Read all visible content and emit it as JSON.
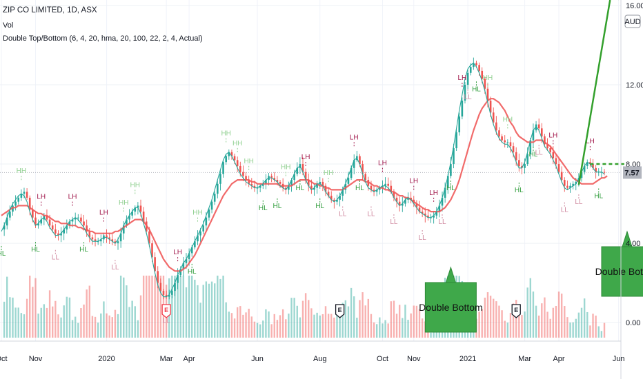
{
  "legend": {
    "symbol": "ZIP CO LIMITED, 1D, ASX",
    "volume": "Vol",
    "indicator": "Double Top/Bottom (6, 4, 20, hma, 20, 100, 22, 2, 4, Actual)"
  },
  "axis": {
    "currency": "AUD",
    "last_price": "7.57",
    "price_ticks": [
      "16.00",
      "12.00",
      "8.00",
      "4.00",
      "0.00"
    ]
  },
  "events": {
    "earnings": [
      "E",
      "E",
      "E"
    ]
  },
  "callouts": [
    {
      "label": "Double Bottom"
    },
    {
      "label": "Double Bottom"
    }
  ],
  "colors": {
    "up": "#26a69a",
    "down": "#ef5350",
    "ma_fast": "#26a69a",
    "ma_slow": "#f05a5a",
    "pivot_green": "#2e9c3a",
    "pivot_light": "#90d090",
    "pivot_red": "#a0164a",
    "pivot_pink": "#d08aa0",
    "callout_fill": "#3fa84a"
  },
  "chart_data": {
    "type": "line",
    "title": "ZIP CO LIMITED, 1D, ASX",
    "ylabel": "AUD",
    "ylim": [
      -2.5,
      16
    ],
    "x_tick_labels": [
      "Oct",
      "Nov",
      "2020",
      "Mar",
      "Apr",
      "Jun",
      "Aug",
      "Oct",
      "Nov",
      "2021",
      "Mar",
      "Apr",
      "Jun"
    ],
    "x_tick_index": [
      0,
      12,
      37,
      58,
      66,
      90,
      112,
      134,
      145,
      164,
      184,
      196,
      217
    ],
    "series": [
      {
        "name": "Close",
        "values": [
          4.7,
          4.9,
          5.3,
          5.6,
          5.9,
          6.1,
          6.3,
          6.5,
          6.6,
          6.3,
          5.7,
          5.3,
          4.9,
          5.0,
          5.2,
          5.4,
          5.2,
          4.9,
          4.7,
          4.5,
          4.4,
          4.5,
          4.7,
          4.9,
          5.1,
          5.2,
          5.3,
          5.3,
          5.1,
          4.9,
          4.6,
          4.3,
          4.2,
          4.1,
          4.1,
          4.2,
          4.4,
          4.3,
          4.2,
          4.1,
          4.0,
          4.1,
          4.5,
          4.9,
          5.2,
          5.4,
          5.6,
          5.8,
          5.9,
          5.6,
          5.1,
          4.6,
          4.0,
          3.3,
          2.6,
          2.0,
          1.6,
          1.4,
          1.3,
          1.4,
          1.6,
          2.0,
          2.4,
          2.7,
          3.0,
          3.2,
          3.5,
          3.8,
          4.1,
          4.4,
          4.6,
          4.9,
          5.3,
          5.7,
          6.1,
          6.5,
          7.0,
          7.5,
          8.1,
          8.4,
          8.6,
          8.4,
          8.2,
          7.9,
          7.6,
          7.4,
          7.2,
          7.0,
          6.9,
          6.8,
          6.8,
          6.9,
          7.0,
          7.2,
          7.4,
          7.3,
          7.2,
          7.1,
          7.0,
          6.8,
          6.7,
          6.9,
          7.2,
          7.5,
          7.8,
          8.0,
          7.6,
          7.2,
          6.9,
          6.7,
          6.8,
          7.0,
          7.1,
          6.9,
          6.6,
          6.4,
          6.2,
          6.1,
          6.2,
          6.4,
          6.7,
          7.0,
          7.3,
          7.8,
          8.2,
          8.4,
          8.0,
          7.5,
          7.2,
          6.9,
          6.7,
          6.6,
          6.7,
          6.8,
          6.9,
          7.0,
          6.9,
          6.6,
          6.3,
          6.1,
          5.9,
          6.0,
          6.2,
          6.3,
          6.2,
          6.0,
          5.8,
          5.6,
          5.5,
          5.4,
          5.3,
          5.3,
          5.4,
          5.6,
          5.9,
          6.3,
          6.8,
          7.4,
          8.0,
          8.8,
          9.6,
          10.4,
          11.2,
          12.0,
          12.6,
          12.9,
          13.1,
          13.0,
          12.7,
          12.3,
          11.8,
          11.2,
          10.6,
          10.1,
          9.7,
          9.4,
          9.2,
          9.1,
          9.1,
          8.9,
          8.6,
          8.2,
          7.9,
          7.8,
          8.0,
          8.5,
          9.2,
          9.7,
          10.0,
          9.8,
          9.4,
          9.0,
          8.8,
          8.6,
          8.3,
          8.0,
          7.6,
          7.2,
          6.9,
          6.8,
          6.9,
          7.0,
          7.1,
          7.3,
          7.6,
          7.9,
          8.1,
          8.0,
          7.8,
          7.6,
          7.6,
          7.6,
          7.57
        ]
      },
      {
        "name": "HMA (fast)",
        "values": [
          4.6,
          4.9,
          5.3,
          5.7,
          6.0,
          6.2,
          6.4,
          6.5,
          6.4,
          6.1,
          5.6,
          5.2,
          4.9,
          5.0,
          5.2,
          5.3,
          5.1,
          4.8,
          4.6,
          4.4,
          4.4,
          4.5,
          4.7,
          4.9,
          5.1,
          5.2,
          5.3,
          5.2,
          5.0,
          4.8,
          4.5,
          4.3,
          4.1,
          4.1,
          4.1,
          4.2,
          4.3,
          4.3,
          4.2,
          4.1,
          4.0,
          4.2,
          4.5,
          4.9,
          5.2,
          5.4,
          5.6,
          5.8,
          5.8,
          5.5,
          5.0,
          4.5,
          3.9,
          3.2,
          2.5,
          1.9,
          1.5,
          1.3,
          1.3,
          1.4,
          1.7,
          2.0,
          2.4,
          2.7,
          3.0,
          3.2,
          3.5,
          3.8,
          4.1,
          4.4,
          4.7,
          5.0,
          5.4,
          5.8,
          6.2,
          6.7,
          7.2,
          7.7,
          8.2,
          8.5,
          8.6,
          8.4,
          8.1,
          7.8,
          7.5,
          7.3,
          7.1,
          7.0,
          6.9,
          6.8,
          6.8,
          6.9,
          7.0,
          7.2,
          7.3,
          7.3,
          7.2,
          7.1,
          6.9,
          6.8,
          6.7,
          6.9,
          7.2,
          7.5,
          7.8,
          7.9,
          7.6,
          7.2,
          6.9,
          6.7,
          6.8,
          7.0,
          7.0,
          6.9,
          6.6,
          6.4,
          6.2,
          6.1,
          6.2,
          6.4,
          6.7,
          7.0,
          7.4,
          7.8,
          8.2,
          8.3,
          8.0,
          7.5,
          7.1,
          6.8,
          6.7,
          6.6,
          6.7,
          6.8,
          6.9,
          6.9,
          6.8,
          6.6,
          6.3,
          6.1,
          5.9,
          6.0,
          6.2,
          6.3,
          6.2,
          6.0,
          5.8,
          5.6,
          5.5,
          5.4,
          5.3,
          5.3,
          5.4,
          5.6,
          5.9,
          6.3,
          6.8,
          7.4,
          8.1,
          8.9,
          9.8,
          10.7,
          11.5,
          12.3,
          12.8,
          13.0,
          13.1,
          12.9,
          12.6,
          12.2,
          11.7,
          11.1,
          10.5,
          10.0,
          9.6,
          9.3,
          9.1,
          9.0,
          9.0,
          8.8,
          8.5,
          8.1,
          7.8,
          7.8,
          8.1,
          8.6,
          9.2,
          9.7,
          9.9,
          9.7,
          9.3,
          8.9,
          8.7,
          8.5,
          8.2,
          7.9,
          7.5,
          7.1,
          6.8,
          6.7,
          6.8,
          6.9,
          7.0,
          7.3,
          7.6,
          7.9,
          8.1,
          8.0,
          7.8,
          7.6,
          7.6,
          7.6,
          7.5
        ]
      },
      {
        "name": "HMA (slow)",
        "values": [
          5.4,
          5.5,
          5.6,
          5.7,
          5.8,
          5.8,
          5.9,
          5.9,
          5.9,
          5.9,
          5.8,
          5.7,
          5.6,
          5.5,
          5.5,
          5.4,
          5.4,
          5.3,
          5.2,
          5.1,
          5.1,
          5.0,
          5.0,
          5.0,
          4.9,
          4.9,
          4.9,
          4.8,
          4.8,
          4.7,
          4.7,
          4.6,
          4.6,
          4.5,
          4.5,
          4.5,
          4.5,
          4.5,
          4.5,
          4.5,
          4.6,
          4.6,
          4.7,
          4.8,
          4.9,
          5.0,
          5.1,
          5.2,
          5.2,
          5.2,
          5.1,
          4.9,
          4.7,
          4.4,
          4.1,
          3.8,
          3.5,
          3.2,
          3.0,
          2.8,
          2.7,
          2.6,
          2.6,
          2.6,
          2.7,
          2.8,
          3.0,
          3.2,
          3.4,
          3.7,
          4.0,
          4.3,
          4.6,
          4.9,
          5.2,
          5.5,
          5.8,
          6.1,
          6.4,
          6.6,
          6.8,
          7.0,
          7.1,
          7.2,
          7.2,
          7.2,
          7.2,
          7.2,
          7.1,
          7.1,
          7.0,
          7.0,
          7.0,
          7.0,
          7.0,
          7.0,
          7.0,
          7.0,
          6.9,
          6.9,
          6.9,
          6.9,
          6.9,
          7.0,
          7.1,
          7.2,
          7.2,
          7.2,
          7.2,
          7.1,
          7.0,
          7.0,
          6.9,
          6.9,
          6.8,
          6.8,
          6.7,
          6.7,
          6.7,
          6.7,
          6.7,
          6.8,
          6.9,
          7.0,
          7.1,
          7.2,
          7.2,
          7.2,
          7.1,
          7.1,
          7.0,
          6.9,
          6.9,
          6.8,
          6.8,
          6.7,
          6.7,
          6.6,
          6.6,
          6.5,
          6.4,
          6.4,
          6.3,
          6.3,
          6.2,
          6.1,
          6.0,
          5.9,
          5.8,
          5.7,
          5.7,
          5.6,
          5.6,
          5.6,
          5.6,
          5.7,
          5.8,
          6.0,
          6.2,
          6.5,
          6.8,
          7.2,
          7.7,
          8.2,
          8.7,
          9.2,
          9.7,
          10.1,
          10.5,
          10.8,
          11.0,
          11.2,
          11.3,
          11.3,
          11.2,
          11.1,
          10.9,
          10.7,
          10.4,
          10.1,
          9.9,
          9.6,
          9.4,
          9.3,
          9.2,
          9.1,
          9.1,
          9.1,
          9.2,
          9.2,
          9.2,
          9.1,
          9.0,
          8.9,
          8.7,
          8.5,
          8.3,
          8.1,
          7.9,
          7.7,
          7.5,
          7.3,
          7.2,
          7.1,
          7.0,
          7.0,
          7.0,
          7.0,
          7.0,
          7.1,
          7.2,
          7.3,
          7.3,
          7.4
        ]
      }
    ],
    "pivots": [
      {
        "i": 0,
        "label": "HL"
      },
      {
        "i": 7,
        "label": "HH"
      },
      {
        "i": 12,
        "label": "HL"
      },
      {
        "i": 14,
        "label": "LH"
      },
      {
        "i": 19,
        "label": "LL"
      },
      {
        "i": 25,
        "label": "LH"
      },
      {
        "i": 29,
        "label": "HL"
      },
      {
        "i": 36,
        "label": "LH"
      },
      {
        "i": 40,
        "label": "LL"
      },
      {
        "i": 43,
        "label": "HH"
      },
      {
        "i": 47,
        "label": "HH"
      },
      {
        "i": 58,
        "label": "LL"
      },
      {
        "i": 62,
        "label": "LH"
      },
      {
        "i": 67,
        "label": "HL"
      },
      {
        "i": 69,
        "label": "HH"
      },
      {
        "i": 79,
        "label": "HH"
      },
      {
        "i": 83,
        "label": "HH"
      },
      {
        "i": 87,
        "label": "HH"
      },
      {
        "i": 92,
        "label": "HL"
      },
      {
        "i": 97,
        "label": "HL"
      },
      {
        "i": 100,
        "label": "HH"
      },
      {
        "i": 105,
        "label": "HL"
      },
      {
        "i": 107,
        "label": "LH"
      },
      {
        "i": 112,
        "label": "HL"
      },
      {
        "i": 115,
        "label": "HH"
      },
      {
        "i": 120,
        "label": "LL"
      },
      {
        "i": 124,
        "label": "LH"
      },
      {
        "i": 126,
        "label": "HL"
      },
      {
        "i": 130,
        "label": "LL"
      },
      {
        "i": 134,
        "label": "LH"
      },
      {
        "i": 138,
        "label": "LL"
      },
      {
        "i": 145,
        "label": "LH"
      },
      {
        "i": 148,
        "label": "LL"
      },
      {
        "i": 152,
        "label": "LH"
      },
      {
        "i": 155,
        "label": "LL"
      },
      {
        "i": 158,
        "label": "HL"
      },
      {
        "i": 162,
        "label": "LH"
      },
      {
        "i": 164,
        "label": "LL"
      },
      {
        "i": 167,
        "label": "HL"
      },
      {
        "i": 171,
        "label": "HH"
      },
      {
        "i": 178,
        "label": "HH"
      },
      {
        "i": 182,
        "label": "HL"
      },
      {
        "i": 187,
        "label": "HL"
      },
      {
        "i": 189,
        "label": "LL"
      },
      {
        "i": 194,
        "label": "LH"
      },
      {
        "i": 198,
        "label": "LL"
      },
      {
        "i": 203,
        "label": "LL"
      },
      {
        "i": 207,
        "label": "LH"
      },
      {
        "i": 210,
        "label": "HL"
      },
      {
        "i": 214,
        "label": "LL"
      },
      {
        "i": 217,
        "label": "HH"
      }
    ],
    "earnings_index": [
      58,
      119,
      181
    ],
    "pattern_index": [
      158,
      220
    ]
  }
}
